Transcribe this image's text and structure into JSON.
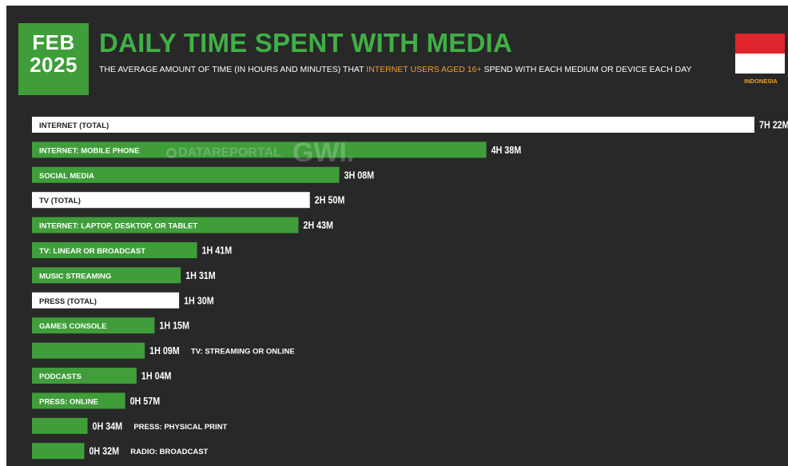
{
  "header": {
    "badge_month": "FEB",
    "badge_year": "2025",
    "title": "DAILY TIME SPENT WITH MEDIA",
    "subtitle_pre": "THE AVERAGE AMOUNT OF TIME (IN HOURS AND MINUTES) THAT ",
    "subtitle_highlight": "INTERNET USERS AGED 16+",
    "subtitle_post": " SPEND WITH EACH MEDIUM OR DEVICE EACH DAY",
    "country": "INDONESIA"
  },
  "watermark": {
    "left": "DATAREPORTAL",
    "right": "GWI."
  },
  "colors": {
    "background": "#282828",
    "green": "#3f9e3a",
    "title_green": "#3fb046",
    "white_bar": "#ffffff",
    "accent_orange": "#f0a030",
    "flag_red": "#e0242b",
    "flag_white": "#ffffff"
  },
  "chart_data": {
    "type": "bar",
    "orientation": "horizontal",
    "unit": "minutes per day",
    "title": "DAILY TIME SPENT WITH MEDIA",
    "categories": [
      "INTERNET (TOTAL)",
      "INTERNET: MOBILE PHONE",
      "SOCIAL MEDIA",
      "TV (TOTAL)",
      "INTERNET: LAPTOP, DESKTOP, OR TABLET",
      "TV: LINEAR OR BROADCAST",
      "MUSIC STREAMING",
      "PRESS (TOTAL)",
      "GAMES CONSOLE",
      "TV: STREAMING OR ONLINE",
      "PODCASTS",
      "PRESS: ONLINE",
      "PRESS: PHYSICAL PRINT",
      "RADIO: BROADCAST"
    ],
    "values": [
      442,
      278,
      188,
      170,
      163,
      101,
      91,
      90,
      75,
      69,
      64,
      57,
      34,
      32
    ],
    "value_labels": [
      "7H 22M",
      "4H 38M",
      "3H 08M",
      "2H 50M",
      "2H 43M",
      "1H 41M",
      "1H 31M",
      "1H 30M",
      "1H 15M",
      "1H 09M",
      "1H 04M",
      "0H 57M",
      "0H 34M",
      "0H 32M"
    ],
    "bar_styles": [
      "total",
      "sub",
      "sub",
      "total",
      "sub",
      "sub",
      "sub",
      "total",
      "sub",
      "sub",
      "sub",
      "sub",
      "sub",
      "sub"
    ],
    "label_positions": [
      "inside",
      "inside",
      "inside",
      "inside",
      "inside",
      "inside",
      "inside",
      "inside",
      "inside",
      "outside",
      "inside",
      "inside",
      "outside",
      "outside"
    ]
  }
}
